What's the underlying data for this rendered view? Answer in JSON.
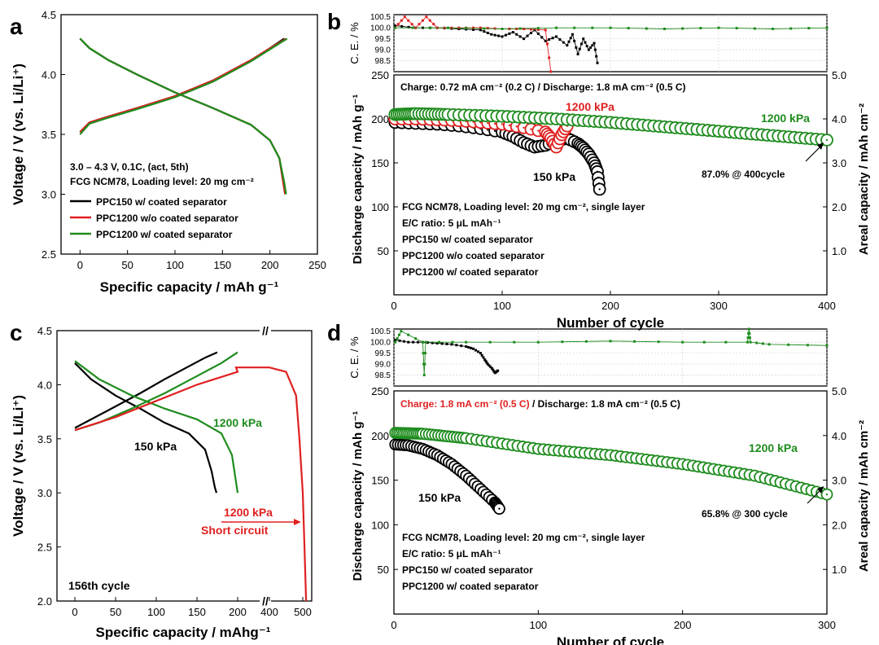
{
  "panel_labels": {
    "a": "a",
    "b": "b",
    "c": "c",
    "d": "d"
  },
  "chart_data": [
    {
      "panel": "a",
      "type": "line",
      "xlabel": "Specific capacity / mAh g⁻¹",
      "ylabel": "Voltage / V (vs. Li/Li⁺)",
      "xlim": [
        -20,
        250
      ],
      "ylim": [
        2.5,
        4.5
      ],
      "xticks": [
        0,
        50,
        100,
        150,
        200,
        250
      ],
      "yticks": [
        2.5,
        3.0,
        3.5,
        4.0,
        4.5
      ],
      "annotations": [
        {
          "text": "3.0 – 4.3 V, 0.1C, (act, 5th)"
        },
        {
          "text": "FCG NCM78, Loading level: 20 mg cm⁻²"
        }
      ],
      "legend": [
        {
          "name": "PPC150 w/ coated separator",
          "color": "#000000"
        },
        {
          "name": "PPC1200 w/o coated separator",
          "color": "#e02020"
        },
        {
          "name": "PPC1200 w/ coated separator",
          "color": "#1e8c1e"
        }
      ],
      "series": [
        {
          "name": "PPC150 w/ coated separator charge",
          "color": "#000000",
          "x": [
            0,
            10,
            30,
            60,
            100,
            140,
            180,
            200,
            215
          ],
          "y": [
            3.52,
            3.6,
            3.65,
            3.72,
            3.82,
            3.95,
            4.12,
            4.22,
            4.3
          ]
        },
        {
          "name": "PPC150 w/ coated separator discharge",
          "color": "#000000",
          "x": [
            0,
            10,
            30,
            60,
            100,
            140,
            180,
            200,
            210,
            214,
            216
          ],
          "y": [
            4.3,
            4.22,
            4.12,
            4.0,
            3.85,
            3.72,
            3.58,
            3.45,
            3.3,
            3.1,
            3.0
          ]
        },
        {
          "name": "PPC1200 w/o coated separator charge",
          "color": "#e02020",
          "x": [
            0,
            10,
            30,
            60,
            100,
            140,
            180,
            200,
            217
          ],
          "y": [
            3.52,
            3.6,
            3.65,
            3.72,
            3.82,
            3.95,
            4.12,
            4.22,
            4.3
          ]
        },
        {
          "name": "PPC1200 w/o coated separator discharge",
          "color": "#e02020",
          "x": [
            0,
            10,
            30,
            60,
            100,
            140,
            180,
            200,
            210,
            214,
            216
          ],
          "y": [
            4.3,
            4.22,
            4.12,
            4.0,
            3.85,
            3.72,
            3.58,
            3.45,
            3.3,
            3.1,
            3.0
          ]
        },
        {
          "name": "PPC1200 w/ coated separator charge",
          "color": "#1e8c1e",
          "x": [
            0,
            10,
            30,
            60,
            100,
            140,
            180,
            200,
            218
          ],
          "y": [
            3.5,
            3.59,
            3.64,
            3.71,
            3.81,
            3.94,
            4.11,
            4.21,
            4.3
          ]
        },
        {
          "name": "PPC1200 w/ coated separator discharge",
          "color": "#1e8c1e",
          "x": [
            0,
            10,
            30,
            60,
            100,
            140,
            180,
            200,
            210,
            215,
            217
          ],
          "y": [
            4.3,
            4.22,
            4.12,
            4.0,
            3.85,
            3.72,
            3.58,
            3.45,
            3.3,
            3.1,
            3.0
          ]
        }
      ]
    },
    {
      "panel": "b",
      "type": "scatter",
      "xlabel": "Number of cycle",
      "ylabel": "Discharge capacity / mAh g⁻¹",
      "ylabel_right": "Areal capacity / mAh cm⁻²",
      "ylabel_ce": "C. E. / %",
      "xlim": [
        0,
        400
      ],
      "ylim": [
        0,
        250
      ],
      "ylim_right": [
        0,
        5.0
      ],
      "ylim_ce": [
        98.0,
        100.6
      ],
      "xticks": [
        0,
        100,
        200,
        300,
        400
      ],
      "yticks": [
        50,
        100,
        150,
        200,
        250
      ],
      "yticks_right": [
        "1.0",
        "2.0",
        "3.0",
        "4.0",
        "5.0"
      ],
      "yticks_ce": [
        "100.5",
        "100.0",
        "99.5",
        "99.0",
        "98.5"
      ],
      "condition": "Charge: 0.72 mA cm⁻² (0.2 C) / Discharge: 1.8 mA cm⁻² (0.5 C)",
      "notes": [
        {
          "text": "FCG NCM78, Loading level: 20 mg cm⁻², single layer",
          "color": "#000000"
        },
        {
          "text": "E/C ratio: 5 μL mAh⁻¹",
          "color": "#000000"
        },
        {
          "text": "PPC150 w/ coated separator",
          "color": "#000000"
        },
        {
          "text": "PPC1200 w/o coated separator",
          "color": "#e02020"
        },
        {
          "text": "PPC1200 w/ coated separator",
          "color": "#1e8c1e"
        }
      ],
      "labels": [
        {
          "text": "1200 kPa",
          "color": "#e02020"
        },
        {
          "text": "1200 kPa",
          "color": "#1e8c1e"
        },
        {
          "text": "150 kPa",
          "color": "#000000"
        },
        {
          "text": "87.0% @ 400cycle",
          "color": "#000000"
        }
      ],
      "series": [
        {
          "name": "PPC150 w/ coated separator",
          "color": "#000000",
          "x": [
            1,
            20,
            40,
            60,
            80,
            100,
            110,
            120,
            130,
            140,
            150,
            160,
            170,
            175,
            180,
            185,
            188,
            190
          ],
          "y": [
            196,
            195,
            194,
            192,
            189,
            185,
            180,
            173,
            168,
            170,
            175,
            178,
            172,
            167,
            160,
            150,
            140,
            120
          ]
        },
        {
          "name": "PPC1200 w/o coated separator",
          "color": "#e02020",
          "x": [
            1,
            20,
            40,
            60,
            80,
            100,
            120,
            140,
            145,
            150,
            155,
            160
          ],
          "y": [
            200,
            200,
            199,
            198,
            196,
            194,
            190,
            185,
            178,
            168,
            182,
            192
          ]
        },
        {
          "name": "PPC1200 w/ coated separator",
          "color": "#1e8c1e",
          "x": [
            1,
            20,
            50,
            100,
            150,
            200,
            250,
            300,
            350,
            400
          ],
          "y": [
            205,
            206,
            205,
            203,
            200,
            196,
            191,
            186,
            181,
            176
          ]
        }
      ],
      "ce_series": [
        {
          "name": "PPC150 w/ coated separator",
          "color": "#000000",
          "x": [
            1,
            20,
            40,
            60,
            80,
            90,
            100,
            110,
            120,
            130,
            140,
            150,
            160,
            165,
            170,
            175,
            180,
            185,
            188
          ],
          "y": [
            100.1,
            100.0,
            100.0,
            99.95,
            99.9,
            99.7,
            99.6,
            99.8,
            99.5,
            99.9,
            99.4,
            99.6,
            99.2,
            99.7,
            98.8,
            99.5,
            99.0,
            99.3,
            98.4
          ]
        },
        {
          "name": "PPC1200 w/o coated separator",
          "color": "#e02020",
          "x": [
            1,
            10,
            20,
            30,
            40,
            60,
            80,
            100,
            120,
            140,
            145
          ],
          "y": [
            100.0,
            100.5,
            100.0,
            100.5,
            100.0,
            100.0,
            100.0,
            99.95,
            99.95,
            99.9,
            98.0
          ]
        },
        {
          "name": "PPC1200 w/ coated separator",
          "color": "#1e8c1e",
          "x": [
            1,
            50,
            100,
            150,
            200,
            250,
            300,
            350,
            400
          ],
          "y": [
            100.0,
            100.0,
            99.95,
            100.0,
            100.0,
            99.95,
            100.0,
            99.95,
            100.0
          ]
        }
      ]
    },
    {
      "panel": "c",
      "type": "line",
      "xlabel": "Specific capacity / mAhg⁻¹",
      "ylabel": "Voltage / V (vs. Li/Li⁺)",
      "ylim": [
        2.0,
        4.5
      ],
      "xticks": [
        "0",
        "50",
        "100",
        "150",
        "200",
        "400",
        "500"
      ],
      "yticks": [
        2.0,
        2.5,
        3.0,
        3.5,
        4.0,
        4.5
      ],
      "axis_break": "//",
      "cycle_label": "156th cycle",
      "labels": [
        {
          "text": "150 kPa",
          "color": "#000000"
        },
        {
          "text": "1200 kPa",
          "color": "#1e8c1e"
        },
        {
          "text": "1200 kPa",
          "color": "#e02020"
        },
        {
          "text": "Short circuit",
          "color": "#e02020"
        }
      ],
      "series": [
        {
          "name": "150 kPa charge",
          "color": "#000000",
          "x": [
            0,
            20,
            50,
            80,
            110,
            140,
            160,
            175
          ],
          "y": [
            3.6,
            3.68,
            3.8,
            3.92,
            4.05,
            4.17,
            4.25,
            4.3
          ]
        },
        {
          "name": "150 kPa discharge",
          "color": "#000000",
          "x": [
            0,
            20,
            50,
            80,
            110,
            140,
            160,
            168,
            172,
            174
          ],
          "y": [
            4.2,
            4.05,
            3.9,
            3.78,
            3.65,
            3.55,
            3.4,
            3.2,
            3.05,
            3.0
          ]
        },
        {
          "name": "1200 kPa charge (w/ coated)",
          "color": "#1e8c1e",
          "x": [
            0,
            30,
            70,
            110,
            150,
            180,
            200
          ],
          "y": [
            3.58,
            3.65,
            3.78,
            3.92,
            4.08,
            4.2,
            4.3
          ]
        },
        {
          "name": "1200 kPa discharge (w/ coated)",
          "color": "#1e8c1e",
          "x": [
            0,
            30,
            70,
            110,
            150,
            180,
            193,
            198,
            200
          ],
          "y": [
            4.22,
            4.05,
            3.9,
            3.78,
            3.68,
            3.55,
            3.35,
            3.1,
            3.0
          ]
        },
        {
          "name": "1200 kPa short circuit",
          "color": "#e02020",
          "x": [
            0,
            50,
            100,
            150,
            200,
            300,
            400,
            450,
            480,
            490,
            500,
            505,
            510
          ],
          "y": [
            3.58,
            3.7,
            3.85,
            4.0,
            4.12,
            4.16,
            4.16,
            4.12,
            3.9,
            3.5,
            3.0,
            2.5,
            2.0
          ]
        }
      ]
    },
    {
      "panel": "d",
      "type": "scatter",
      "xlabel": "Number of cycle",
      "ylabel": "Discharge capacity / mAh g⁻¹",
      "ylabel_right": "Areal capacity / mAh cm⁻²",
      "ylabel_ce": "C. E. / %",
      "xlim": [
        0,
        300
      ],
      "ylim": [
        0,
        250
      ],
      "ylim_right": [
        0,
        5.0
      ],
      "ylim_ce": [
        98.0,
        100.6
      ],
      "xticks": [
        0,
        100,
        200,
        300
      ],
      "yticks": [
        50,
        100,
        150,
        200,
        250
      ],
      "yticks_right": [
        "1.0",
        "2.0",
        "3.0",
        "4.0",
        "5.0"
      ],
      "yticks_ce": [
        "100.5",
        "100.0",
        "99.5",
        "99.0",
        "98.5"
      ],
      "condition_charge": "Charge: 1.8 mA cm⁻² (0.5 C)",
      "condition_discharge": " / Discharge: 1.8 mA cm⁻² (0.5 C)",
      "notes": [
        {
          "text": "FCG NCM78, Loading level: 20 mg cm⁻², single layer",
          "color": "#000000"
        },
        {
          "text": "E/C ratio: 5 μL mAh⁻¹",
          "color": "#000000"
        },
        {
          "text": "PPC150 w/ coated separator",
          "color": "#000000"
        },
        {
          "text": "PPC1200 w/ coated separator",
          "color": "#1e8c1e"
        }
      ],
      "labels": [
        {
          "text": "1200 kPa",
          "color": "#1e8c1e"
        },
        {
          "text": "150 kPa",
          "color": "#000000"
        },
        {
          "text": "65.8% @ 300 cycle",
          "color": "#000000"
        }
      ],
      "series": [
        {
          "name": "PPC150 w/ coated separator",
          "color": "#000000",
          "x": [
            1,
            10,
            20,
            30,
            40,
            50,
            60,
            70,
            73
          ],
          "y": [
            190,
            189,
            185,
            178,
            168,
            155,
            140,
            125,
            118
          ]
        },
        {
          "name": "PPC1200 w/ coated separator",
          "color": "#1e8c1e",
          "x": [
            1,
            20,
            50,
            100,
            150,
            200,
            250,
            300
          ],
          "y": [
            203,
            202,
            197,
            185,
            178,
            168,
            155,
            134
          ]
        }
      ],
      "ce_series": [
        {
          "name": "PPC150 w/ coated separator",
          "color": "#000000",
          "x": [
            1,
            10,
            20,
            30,
            40,
            50,
            55,
            60,
            63,
            65,
            68,
            70,
            72
          ],
          "y": [
            100.1,
            100.0,
            100.0,
            99.95,
            99.9,
            99.8,
            99.7,
            99.5,
            99.2,
            99.0,
            98.8,
            98.6,
            98.7
          ]
        },
        {
          "name": "PPC1200 w/ coated separator",
          "color": "#1e8c1e",
          "x": [
            1,
            5,
            20,
            21,
            22,
            50,
            100,
            150,
            200,
            245,
            246,
            247,
            260,
            300
          ],
          "y": [
            100.0,
            100.5,
            100.0,
            98.5,
            100.0,
            100.0,
            100.0,
            100.05,
            100.0,
            100.0,
            100.6,
            100.0,
            99.9,
            99.85
          ]
        }
      ]
    }
  ]
}
